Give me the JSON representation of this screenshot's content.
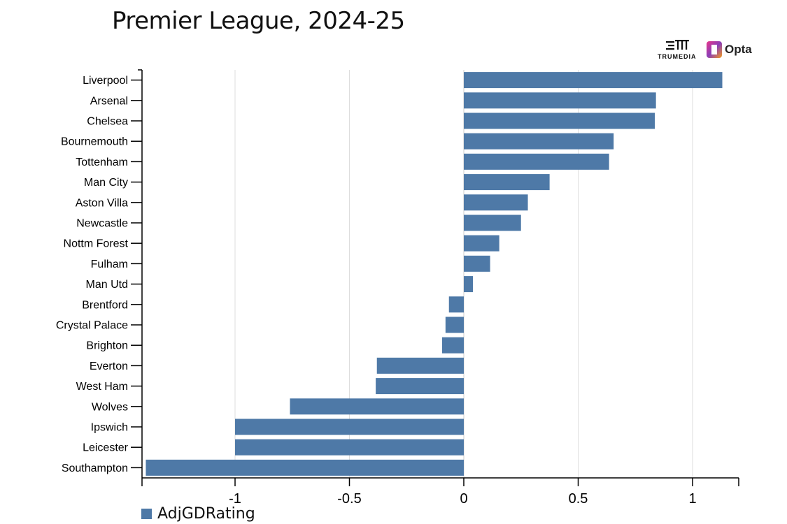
{
  "header": {
    "title": "Premier League, 2024-25"
  },
  "logos": {
    "trumedia_text": "TRUMEDIA",
    "opta_text": "Opta"
  },
  "colors": {
    "bar": "#4e79a7",
    "grid": "#dddddd",
    "axis": "#000000"
  },
  "legend": {
    "label": "AdjGDRating"
  },
  "chart_data": {
    "type": "bar",
    "orientation": "horizontal",
    "categories": [
      "Liverpool",
      "Arsenal",
      "Chelsea",
      "Bournemouth",
      "Tottenham",
      "Man City",
      "Aston Villa",
      "Newcastle",
      "Nottm Forest",
      "Fulham",
      "Man Utd",
      "Brentford",
      "Crystal Palace",
      "Brighton",
      "Everton",
      "West Ham",
      "Wolves",
      "Ipswich",
      "Leicester",
      "Southampton"
    ],
    "series": [
      {
        "name": "AdjGDRating",
        "values": [
          1.13,
          0.84,
          0.835,
          0.655,
          0.635,
          0.375,
          0.28,
          0.25,
          0.155,
          0.115,
          0.04,
          -0.065,
          -0.08,
          -0.095,
          -0.38,
          -0.385,
          -0.76,
          -1.0,
          -1.0,
          -1.39
        ]
      }
    ],
    "x_ticks": [
      -1,
      -0.5,
      0,
      0.5,
      1
    ],
    "x_tick_labels": [
      "-1",
      "-0.5",
      "0",
      "0.5",
      "1"
    ],
    "xlim": [
      -1.4,
      1.2
    ],
    "grid": true,
    "legend_position": "bottom-left"
  }
}
